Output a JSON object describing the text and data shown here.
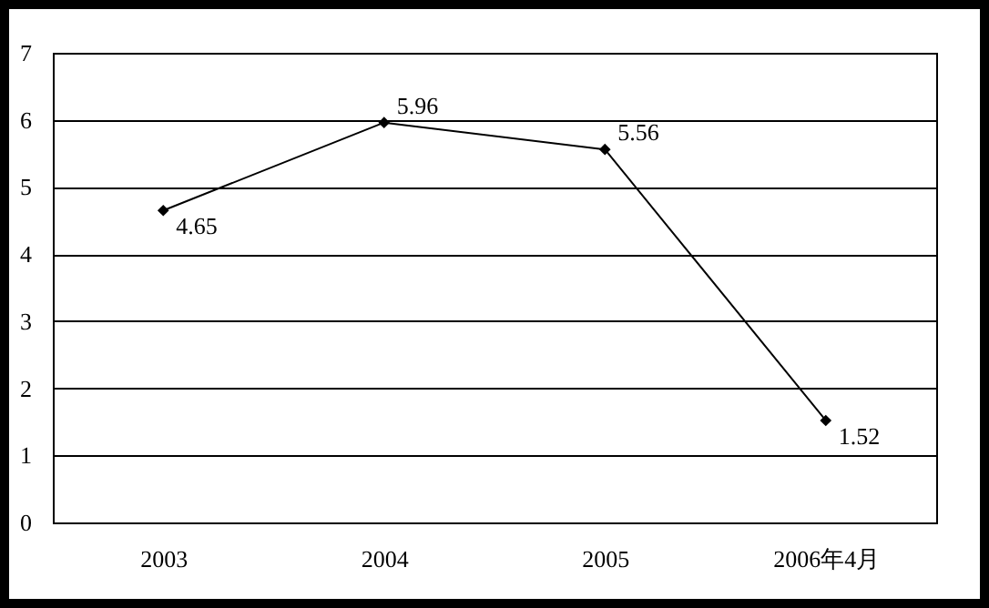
{
  "chart_data": {
    "type": "line",
    "categories": [
      "2003",
      "2004",
      "2005",
      "2006年4月"
    ],
    "series": [
      {
        "color": "#000000",
        "values": [
          4.65,
          5.96,
          5.56,
          1.52
        ]
      }
    ],
    "ylim": [
      0,
      7
    ],
    "yticks": [
      0,
      1,
      2,
      3,
      4,
      5,
      6,
      7
    ],
    "grid": "y",
    "marker": "diamond",
    "line_style": "solid",
    "data_labels": true,
    "legend": false
  }
}
